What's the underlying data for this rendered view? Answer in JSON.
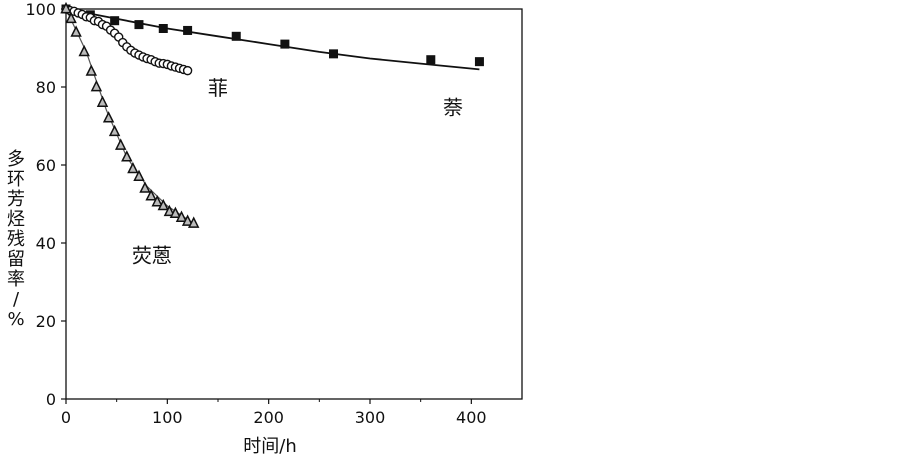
{
  "chart_data": {
    "type": "scatter",
    "xlabel": "时间/h",
    "ylabel": "多环芳烃残留率/%",
    "xlim": [
      0,
      450
    ],
    "ylim": [
      0,
      100
    ],
    "xticks": [
      "0",
      "100",
      "200",
      "300",
      "400"
    ],
    "yticks": [
      "0",
      "20",
      "40",
      "60",
      "80",
      "100"
    ],
    "grid": false,
    "series": [
      {
        "name": "萘",
        "marker": "square",
        "points": [
          [
            0,
            100
          ],
          [
            24,
            98.5
          ],
          [
            48,
            97
          ],
          [
            72,
            96
          ],
          [
            96,
            95
          ],
          [
            120,
            94.5
          ],
          [
            168,
            93
          ],
          [
            216,
            91
          ],
          [
            264,
            88.5
          ],
          [
            360,
            87
          ],
          [
            408,
            86.5
          ]
        ],
        "fit": [
          [
            0,
            100
          ],
          [
            50,
            97.5
          ],
          [
            100,
            95
          ],
          [
            150,
            93
          ],
          [
            200,
            91
          ],
          [
            250,
            89
          ],
          [
            300,
            87.3
          ],
          [
            350,
            86
          ],
          [
            408,
            84.5
          ]
        ]
      },
      {
        "name": "菲",
        "marker": "circle",
        "points": [
          [
            0,
            100
          ],
          [
            4,
            99.6
          ],
          [
            8,
            99.4
          ],
          [
            12,
            99
          ],
          [
            16,
            98.6
          ],
          [
            20,
            98
          ],
          [
            24,
            97.8
          ],
          [
            28,
            97
          ],
          [
            32,
            96.8
          ],
          [
            36,
            96
          ],
          [
            40,
            95.6
          ],
          [
            44,
            94.6
          ],
          [
            48,
            93.8
          ],
          [
            52,
            92.8
          ],
          [
            56,
            91.4
          ],
          [
            60,
            90.3
          ],
          [
            64,
            89.4
          ],
          [
            68,
            88.7
          ],
          [
            72,
            88.2
          ],
          [
            76,
            87.7
          ],
          [
            80,
            87.3
          ],
          [
            84,
            87
          ],
          [
            88,
            86.5
          ],
          [
            92,
            86.1
          ],
          [
            96,
            86
          ],
          [
            100,
            85.8
          ],
          [
            104,
            85.4
          ],
          [
            108,
            85.1
          ],
          [
            112,
            84.8
          ],
          [
            116,
            84.5
          ],
          [
            120,
            84.2
          ]
        ],
        "fit": [
          [
            0,
            100
          ],
          [
            20,
            98.5
          ],
          [
            40,
            95.5
          ],
          [
            60,
            91
          ],
          [
            80,
            88
          ],
          [
            100,
            86
          ],
          [
            120,
            84.5
          ]
        ]
      },
      {
        "name": "荧蒽",
        "marker": "triangle",
        "points": [
          [
            0,
            100
          ],
          [
            5,
            97.5
          ],
          [
            10,
            94
          ],
          [
            18,
            89
          ],
          [
            25,
            84
          ],
          [
            30,
            80
          ],
          [
            36,
            76
          ],
          [
            42,
            72
          ],
          [
            48,
            68.5
          ],
          [
            54,
            65
          ],
          [
            60,
            62
          ],
          [
            66,
            59
          ],
          [
            72,
            57
          ],
          [
            78,
            54
          ],
          [
            84,
            52
          ],
          [
            90,
            50.5
          ],
          [
            96,
            49.5
          ],
          [
            102,
            48
          ],
          [
            108,
            47.5
          ],
          [
            114,
            46.5
          ],
          [
            120,
            45.5
          ],
          [
            126,
            45
          ]
        ],
        "fit": [
          [
            0,
            100
          ],
          [
            20,
            89
          ],
          [
            40,
            74
          ],
          [
            60,
            62
          ],
          [
            80,
            54.5
          ],
          [
            100,
            49.5
          ],
          [
            126,
            45
          ]
        ]
      }
    ]
  }
}
